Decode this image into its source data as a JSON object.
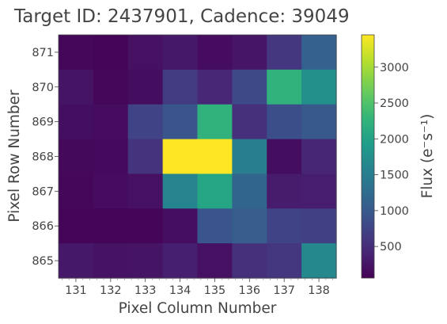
{
  "chart_data": {
    "type": "heatmap",
    "title": "Target ID: 2437901, Cadence: 39049",
    "xlabel": "Pixel Column Number",
    "ylabel": "Pixel Row Number",
    "colorbar_label": "Flux (e⁻s⁻¹)",
    "colormap": "viridis",
    "x_ticks": [
      "131",
      "132",
      "133",
      "134",
      "135",
      "136",
      "137",
      "138"
    ],
    "y_ticks": [
      "871",
      "870",
      "869",
      "868",
      "867",
      "866",
      "865"
    ],
    "colorbar_ticks": [
      {
        "value": 500,
        "label": "500"
      },
      {
        "value": 1000,
        "label": "1000"
      },
      {
        "value": 1500,
        "label": "1500"
      },
      {
        "value": 2000,
        "label": "2000"
      },
      {
        "value": 2500,
        "label": "2500"
      },
      {
        "value": 3000,
        "label": "3000"
      }
    ],
    "vmin": 60,
    "vmax": 3450,
    "rows": [
      871,
      870,
      869,
      868,
      867,
      866,
      865
    ],
    "columns": [
      131,
      132,
      133,
      134,
      135,
      136,
      137,
      138
    ],
    "values": [
      [
        120,
        100,
        210,
        280,
        170,
        250,
        600,
        1100
      ],
      [
        240,
        120,
        180,
        650,
        430,
        800,
        2250,
        1750
      ],
      [
        200,
        170,
        740,
        950,
        2250,
        510,
        860,
        1000
      ],
      [
        140,
        150,
        570,
        3450,
        3450,
        1500,
        180,
        420
      ],
      [
        120,
        170,
        210,
        1600,
        2050,
        1150,
        320,
        340
      ],
      [
        100,
        90,
        110,
        190,
        950,
        1050,
        750,
        700
      ],
      [
        280,
        220,
        240,
        350,
        210,
        520,
        590,
        1650
      ]
    ]
  }
}
